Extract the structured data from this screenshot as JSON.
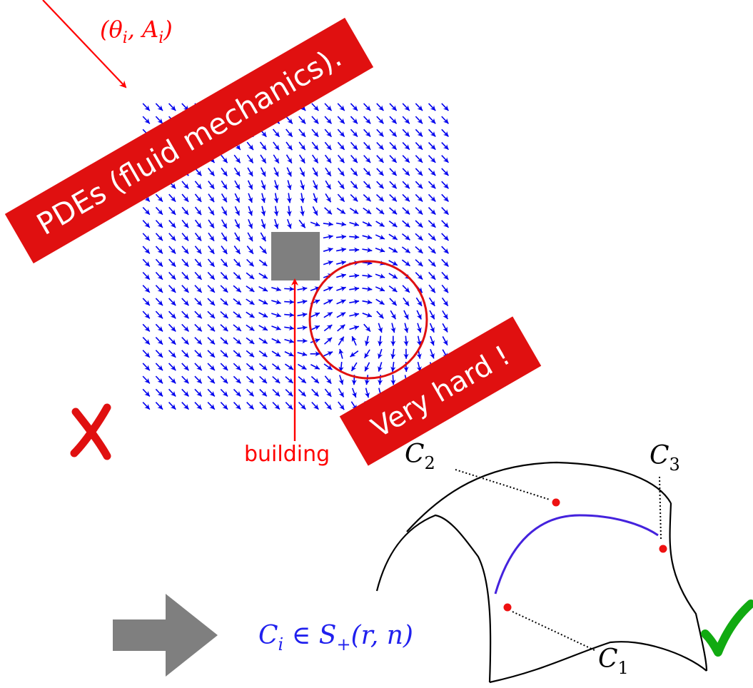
{
  "colors": {
    "accent": "#ff0000",
    "banner": "#e01010",
    "vector_blue": "#0000ee",
    "building_gray": "#7f7f7f",
    "curve_purple": "#4422dd",
    "point_red": "#ee1111",
    "check_green": "#11aa11",
    "arrow_gray": "#7f7f7f",
    "ink": "#000000"
  },
  "labels": {
    "theta_main": "(θ",
    "theta_sub": "i",
    "theta_mid": ", A",
    "a_sub": "i",
    "theta_end": ")",
    "banner_pdes": "PDEs (fluid mechanics).",
    "banner_hard": "Very hard !",
    "building": "building",
    "c1": "C",
    "c1_sub": "1",
    "c2": "C",
    "c2_sub": "2",
    "c3": "C",
    "c3_sub": "3",
    "formula_c": "C",
    "formula_i": "i",
    "formula_in": " ∈ ",
    "formula_s": "S",
    "formula_plus": "+",
    "formula_args": "(r, n)"
  },
  "icons": {
    "cross": "cross-mark-icon",
    "check": "check-mark-icon",
    "big_arrow": "right-arrow-icon"
  }
}
